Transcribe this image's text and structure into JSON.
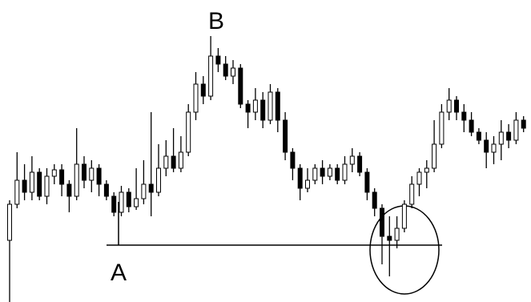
{
  "chart_data": {
    "type": "candlestick",
    "annotations": [
      "A",
      "B"
    ],
    "ylim": [
      0,
      377
    ],
    "up_color": "#ffffff",
    "down_color": "#000000",
    "open": [
      77,
      122,
      152,
      137,
      162,
      132,
      157,
      165,
      147,
      132,
      172,
      152,
      167,
      147,
      132,
      112,
      137,
      119,
      129,
      147,
      137,
      167,
      182,
      167,
      187,
      237,
      272,
      257,
      307,
      297,
      282,
      292,
      247,
      237,
      252,
      227,
      262,
      227,
      187,
      167,
      142,
      152,
      167,
      157,
      167,
      152,
      172,
      182,
      162,
      137,
      117,
      82,
      77,
      92,
      122,
      147,
      162,
      167,
      197,
      237,
      252,
      237,
      227,
      212,
      202,
      187,
      197,
      212,
      202,
      227
    ],
    "close": [
      122,
      152,
      137,
      162,
      132,
      157,
      165,
      147,
      132,
      172,
      152,
      167,
      147,
      132,
      112,
      137,
      119,
      129,
      147,
      137,
      167,
      182,
      167,
      187,
      237,
      272,
      257,
      307,
      297,
      282,
      292,
      247,
      237,
      252,
      227,
      262,
      227,
      187,
      167,
      142,
      152,
      167,
      157,
      167,
      152,
      172,
      182,
      162,
      137,
      117,
      82,
      77,
      92,
      122,
      147,
      162,
      167,
      197,
      237,
      252,
      237,
      227,
      212,
      202,
      187,
      197,
      212,
      202,
      227,
      217
    ],
    "high": [
      127,
      187,
      172,
      182,
      167,
      167,
      172,
      172,
      152,
      217,
      182,
      177,
      172,
      152,
      137,
      145,
      142,
      167,
      177,
      237,
      197,
      202,
      217,
      207,
      247,
      287,
      282,
      332,
      317,
      307,
      302,
      297,
      252,
      267,
      262,
      272,
      267,
      237,
      192,
      172,
      167,
      172,
      177,
      172,
      172,
      182,
      192,
      187,
      167,
      142,
      122,
      107,
      107,
      127,
      157,
      167,
      177,
      227,
      247,
      267,
      257,
      247,
      237,
      217,
      212,
      207,
      227,
      222,
      237,
      232
    ],
    "low": [
      0,
      117,
      127,
      127,
      127,
      122,
      147,
      132,
      112,
      127,
      142,
      137,
      132,
      127,
      107,
      107,
      112,
      115,
      122,
      107,
      132,
      157,
      162,
      162,
      182,
      227,
      247,
      252,
      287,
      277,
      272,
      242,
      217,
      227,
      217,
      222,
      212,
      177,
      152,
      127,
      137,
      147,
      147,
      152,
      147,
      147,
      162,
      157,
      127,
      107,
      47,
      32,
      67,
      87,
      117,
      132,
      142,
      162,
      192,
      227,
      227,
      212,
      207,
      197,
      167,
      172,
      177,
      192,
      197,
      212
    ]
  }
}
